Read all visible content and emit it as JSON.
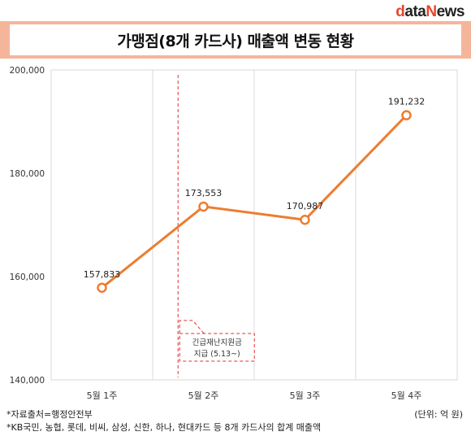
{
  "logo": {
    "d": "d",
    "ata": "ata",
    "n": "N",
    "ews": "ews"
  },
  "title": "가맹점(8개 카드사) 매출액 변동 현황",
  "chart_data": {
    "type": "line",
    "categories": [
      "5월 1주",
      "5월 2주",
      "5월 3주",
      "5월 4주"
    ],
    "values": [
      157833,
      173553,
      170987,
      191232
    ],
    "data_labels": [
      "157,833",
      "173,553",
      "170,987",
      "191,232"
    ],
    "ylim": [
      140000,
      200000
    ],
    "yticks": [
      140000,
      160000,
      180000,
      200000
    ],
    "ytick_labels": [
      "140,000",
      "160,000",
      "180,000",
      "200,000"
    ],
    "line_color": "#ed7d31",
    "marker_fill": "#ffffff",
    "grid": "vertical",
    "annotation": {
      "line1": "긴급재난지원금",
      "line2": "지급 (5.13~)",
      "color": "#e03030"
    }
  },
  "footnotes": {
    "source": "*자료출처=행정안전부",
    "note": "*KB국민, 농협, 롯데, 비씨, 삼성, 신한, 하나, 현대카드 등 8개 카드사의 합계 매출액",
    "unit": "(단위: 억 원)"
  }
}
